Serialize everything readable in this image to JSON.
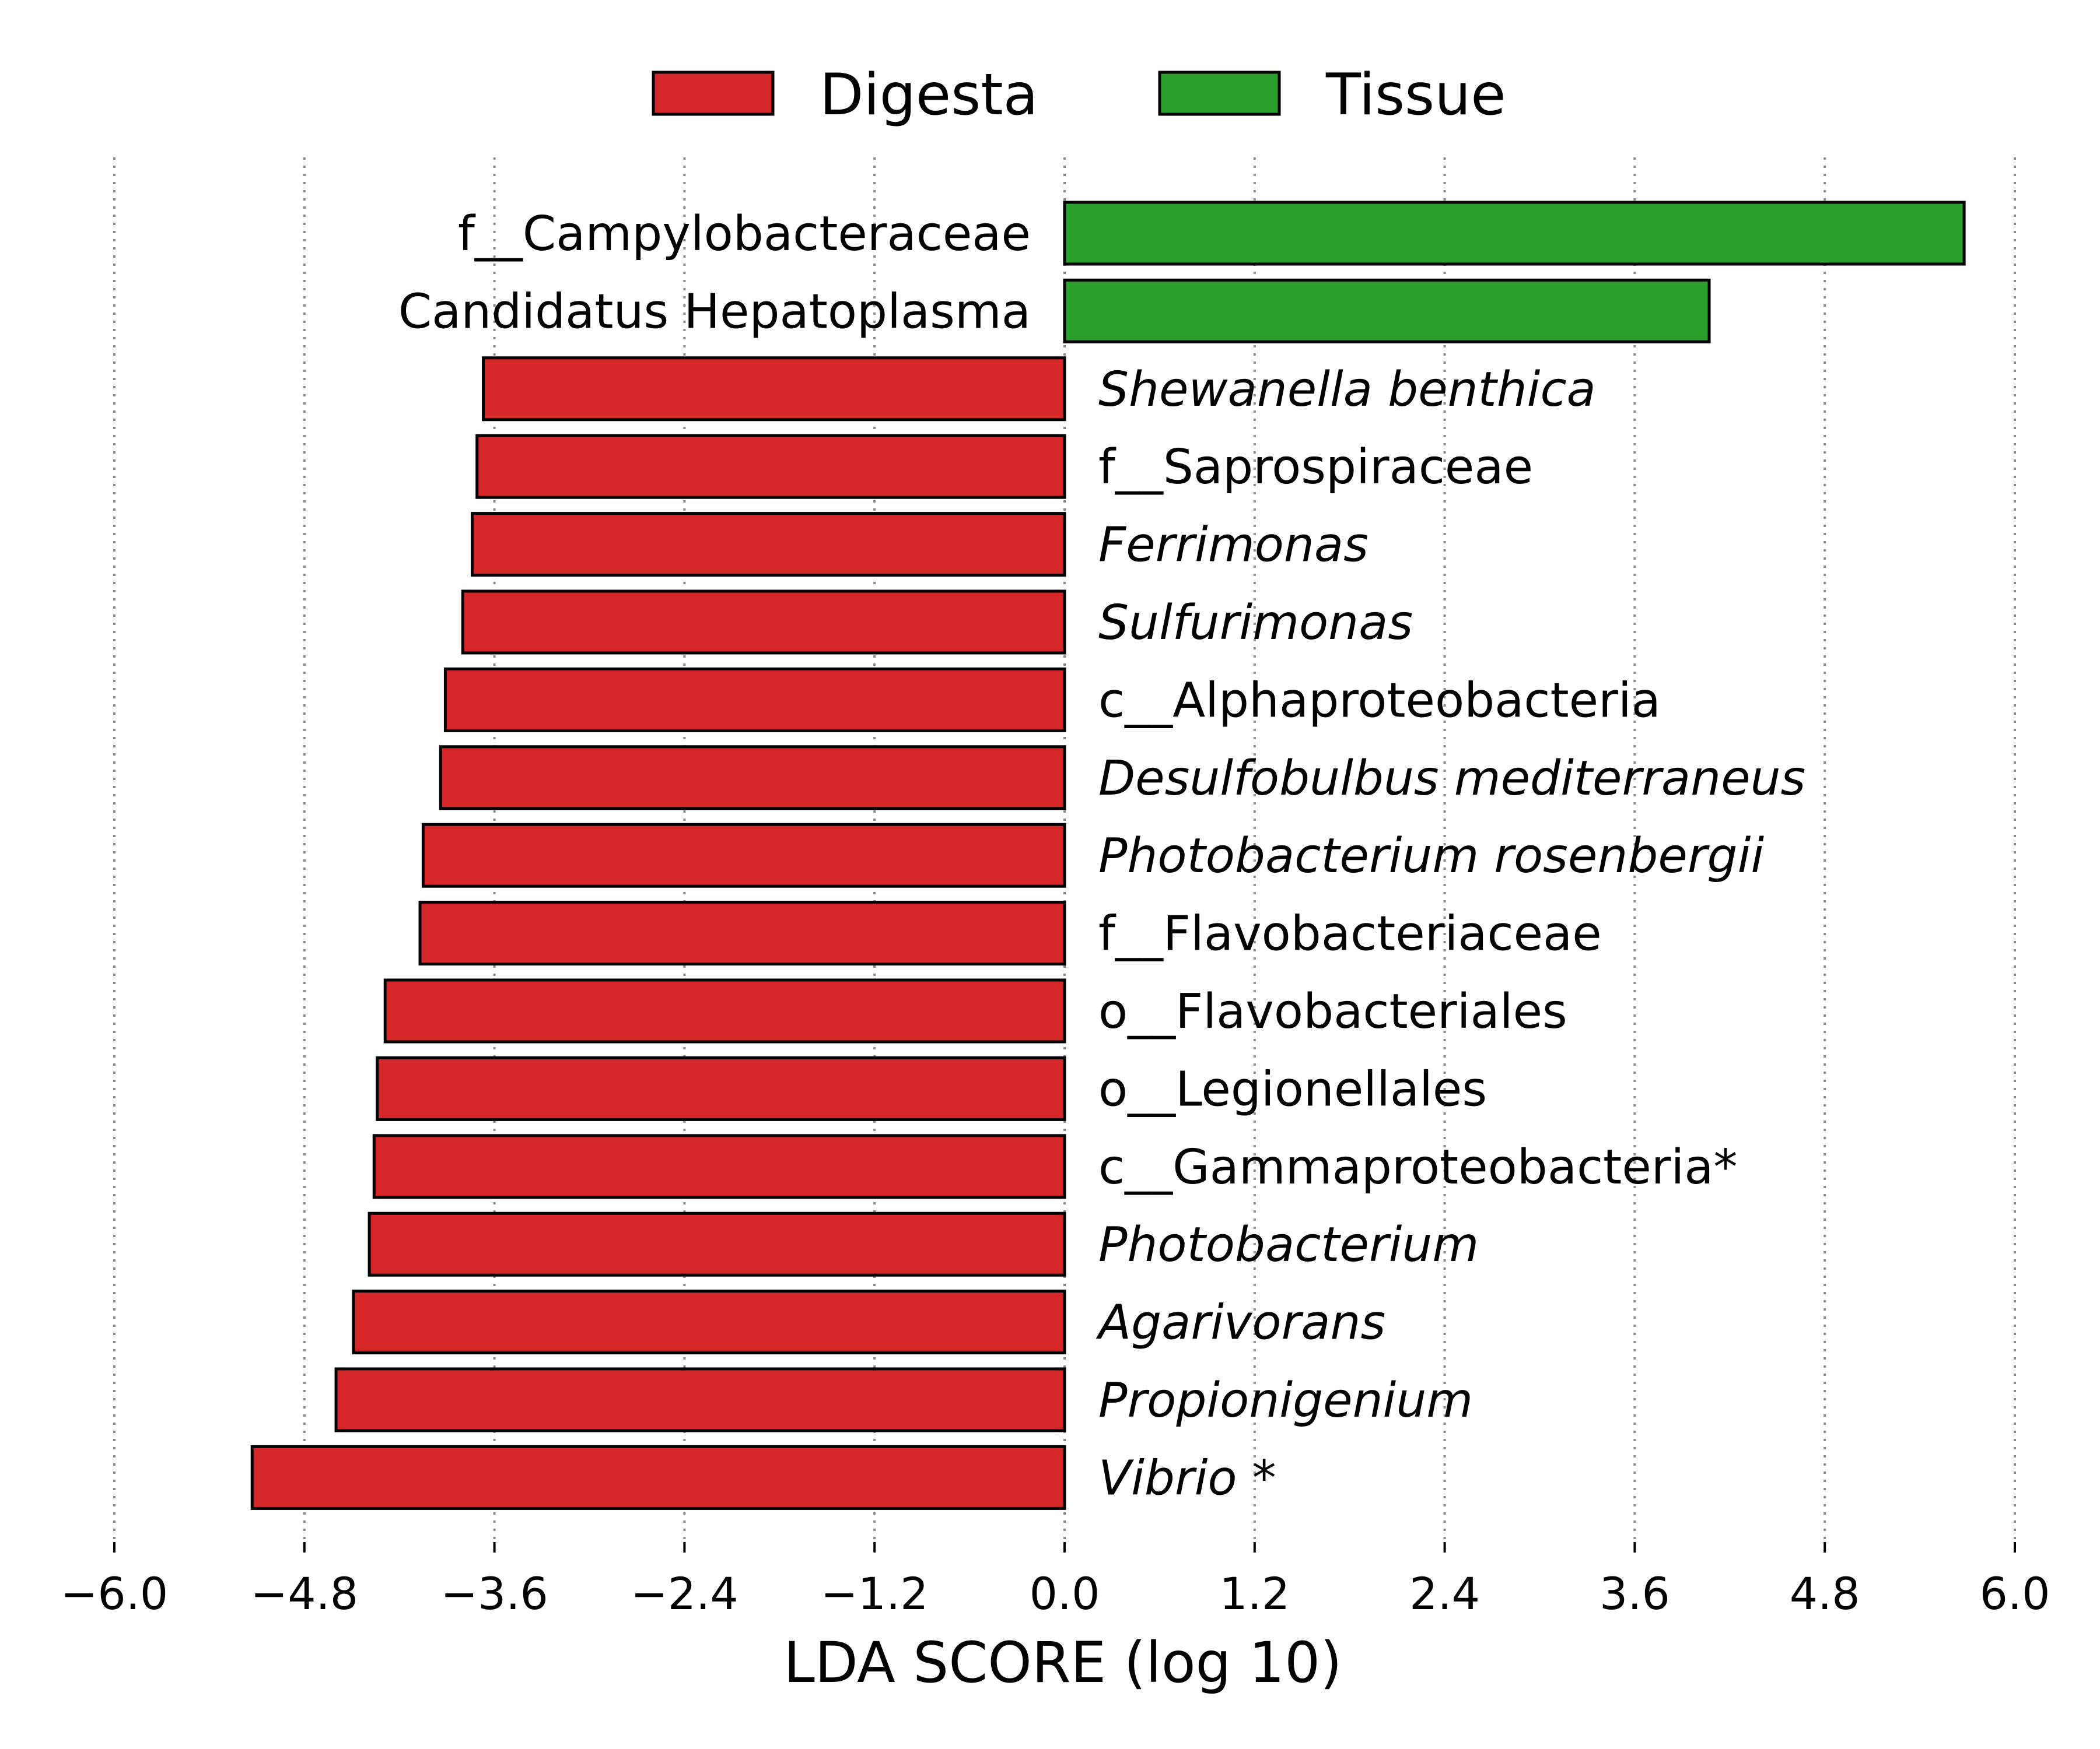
{
  "chart_data": {
    "type": "bar",
    "orientation": "horizontal",
    "xlabel": "LDA SCORE (log 10)",
    "xlim": [
      -6.0,
      6.0
    ],
    "xticks": [
      "−6.0",
      "−4.8",
      "−3.6",
      "−2.4",
      "−1.2",
      "0.0",
      "1.2",
      "2.4",
      "3.6",
      "4.8",
      "6.0"
    ],
    "grid": "vertical dotted",
    "legend": {
      "placement": "top-center",
      "entries": [
        {
          "name": "Digesta",
          "color": "#d62728"
        },
        {
          "name": "Tissue",
          "color": "#2ca02c"
        }
      ]
    },
    "categories": [
      {
        "label": "f__Campylobacteraceae",
        "value": 5.68,
        "group": "Tissue",
        "italic": false
      },
      {
        "label": "Candidatus Hepatoplasma",
        "value": 4.07,
        "group": "Tissue",
        "italic": false
      },
      {
        "label": "Shewanella benthica",
        "value": -3.67,
        "group": "Digesta",
        "italic": true
      },
      {
        "label": "f__Saprospiraceae",
        "value": -3.71,
        "group": "Digesta",
        "italic": false
      },
      {
        "label": "Ferrimonas",
        "value": -3.74,
        "group": "Digesta",
        "italic": true
      },
      {
        "label": "Sulfurimonas",
        "value": -3.8,
        "group": "Digesta",
        "italic": true
      },
      {
        "label": "c__Alphaproteobacteria",
        "value": -3.91,
        "group": "Digesta",
        "italic": false
      },
      {
        "label": "Desulfobulbus mediterraneus",
        "value": -3.94,
        "group": "Digesta",
        "italic": true
      },
      {
        "label": "Photobacterium rosenbergii",
        "value": -4.05,
        "group": "Digesta",
        "italic": true
      },
      {
        "label": "f__Flavobacteriaceae",
        "value": -4.07,
        "group": "Digesta",
        "italic": false
      },
      {
        "label": "o__Flavobacteriales",
        "value": -4.29,
        "group": "Digesta",
        "italic": false
      },
      {
        "label": "o__Legionellales",
        "value": -4.34,
        "group": "Digesta",
        "italic": false
      },
      {
        "label": "c__Gammaproteobacteria*",
        "value": -4.36,
        "group": "Digesta",
        "italic": false
      },
      {
        "label": "Photobacterium",
        "value": -4.39,
        "group": "Digesta",
        "italic": true
      },
      {
        "label": "Agarivorans",
        "value": -4.49,
        "group": "Digesta",
        "italic": true
      },
      {
        "label": "Propionigenium",
        "value": -4.6,
        "group": "Digesta",
        "italic": true
      },
      {
        "label": "Vibrio *",
        "value": -5.13,
        "group": "Digesta",
        "italic": true
      }
    ]
  }
}
